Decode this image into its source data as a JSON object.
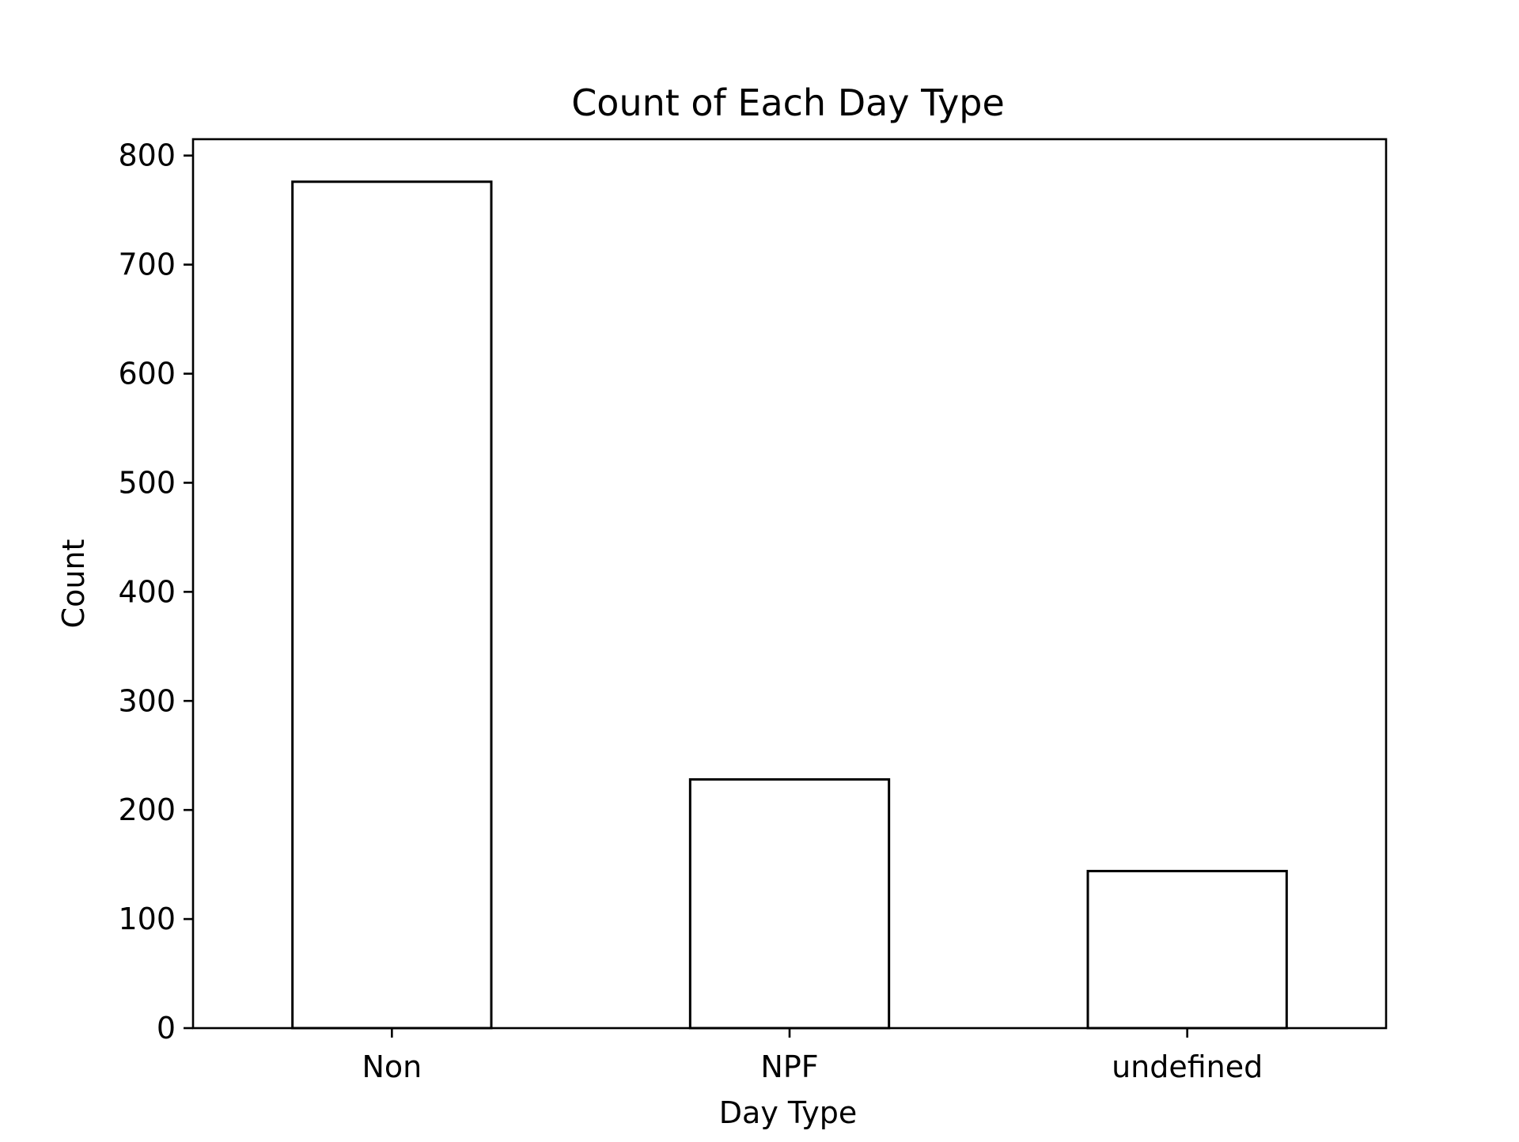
{
  "chart_data": {
    "type": "bar",
    "title": "Count of Each Day Type",
    "xlabel": "Day Type",
    "ylabel": "Count",
    "categories": [
      "Non",
      "NPF",
      "undefined"
    ],
    "values": [
      776,
      228,
      144
    ],
    "ylim": [
      0,
      815
    ],
    "yticks": [
      0,
      100,
      200,
      300,
      400,
      500,
      600,
      700,
      800
    ],
    "grid": false,
    "legend": "none",
    "colors": {
      "bar_fill": "#ffffff",
      "bar_edge": "#000000",
      "axes": "#000000",
      "text": "#000000"
    }
  }
}
